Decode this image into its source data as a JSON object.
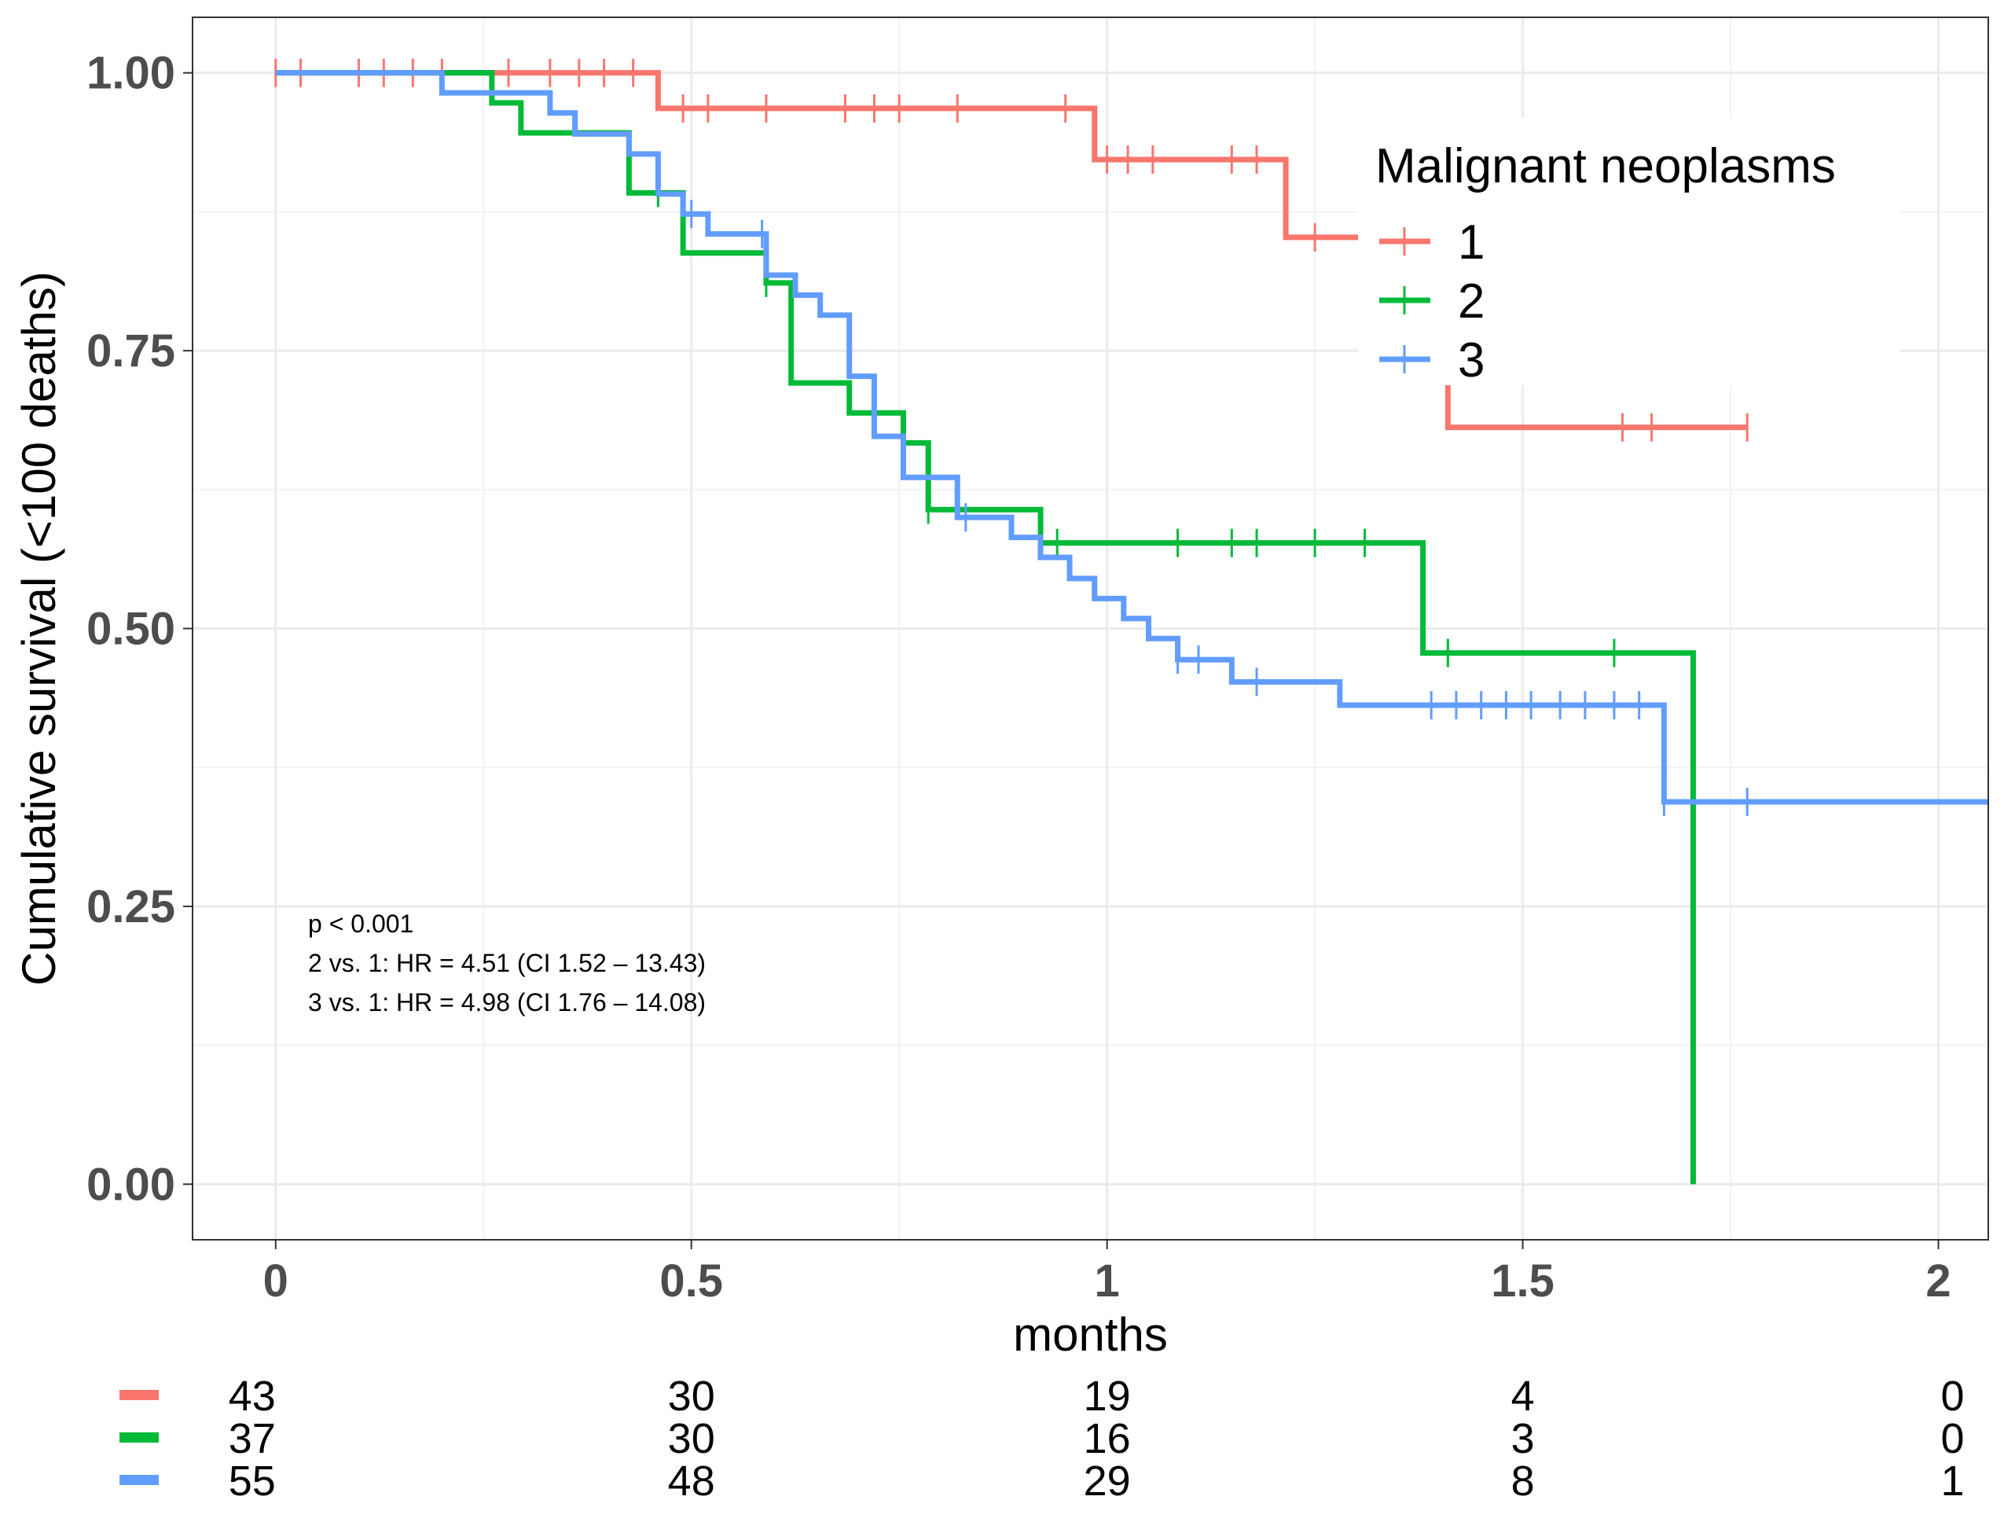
{
  "chart_data": {
    "type": "line",
    "subtype": "kaplan-meier",
    "title": "",
    "xlabel": "months",
    "ylabel": "Cumulative survival (<100 deaths)",
    "xlim": [
      -0.1,
      2.06
    ],
    "ylim": [
      -0.05,
      1.05
    ],
    "x_ticks": [
      0,
      0.5,
      1,
      1.5,
      2
    ],
    "x_tick_labels": [
      "0",
      "0.5",
      "1",
      "1.5",
      "2"
    ],
    "y_ticks": [
      0,
      0.25,
      0.5,
      0.75,
      1.0
    ],
    "y_tick_labels": [
      "0.00",
      "0.25",
      "0.50",
      "0.75",
      "1.00"
    ],
    "grid": true,
    "legend": {
      "title": "Malignant neoplasms",
      "placement": "top-right"
    },
    "series": [
      {
        "name": "1",
        "color": "#F8766D",
        "steps": [
          [
            0,
            1.0
          ],
          [
            0.46,
            0.968
          ],
          [
            0.985,
            0.922
          ],
          [
            1.215,
            0.852
          ],
          [
            1.41,
            0.681
          ],
          [
            1.77,
            0.681
          ]
        ],
        "censor_x": [
          0,
          0.03,
          0.1,
          0.13,
          0.165,
          0.2,
          0.28,
          0.33,
          0.365,
          0.395,
          0.43,
          0.49,
          0.52,
          0.59,
          0.685,
          0.72,
          0.75,
          0.82,
          0.95,
          1.0,
          1.025,
          1.055,
          1.15,
          1.18,
          1.25,
          1.62,
          1.655,
          1.77
        ]
      },
      {
        "name": "2",
        "color": "#00BA38",
        "steps": [
          [
            0,
            1.0
          ],
          [
            0.26,
            0.973
          ],
          [
            0.295,
            0.946
          ],
          [
            0.425,
            0.892
          ],
          [
            0.49,
            0.838
          ],
          [
            0.59,
            0.811
          ],
          [
            0.62,
            0.721
          ],
          [
            0.69,
            0.694
          ],
          [
            0.755,
            0.667
          ],
          [
            0.785,
            0.607
          ],
          [
            0.92,
            0.577
          ],
          [
            1.38,
            0.478
          ],
          [
            1.705,
            0.478
          ],
          [
            1.705,
            0.0
          ]
        ],
        "censor_x": [
          0.46,
          0.59,
          0.785,
          0.94,
          1.085,
          1.15,
          1.18,
          1.25,
          1.31,
          1.41,
          1.61
        ]
      },
      {
        "name": "3",
        "color": "#619CFF",
        "steps": [
          [
            0,
            1.0
          ],
          [
            0.2,
            0.982
          ],
          [
            0.33,
            0.964
          ],
          [
            0.36,
            0.945
          ],
          [
            0.425,
            0.927
          ],
          [
            0.46,
            0.891
          ],
          [
            0.49,
            0.873
          ],
          [
            0.52,
            0.855
          ],
          [
            0.59,
            0.818
          ],
          [
            0.625,
            0.8
          ],
          [
            0.655,
            0.782
          ],
          [
            0.69,
            0.727
          ],
          [
            0.72,
            0.673
          ],
          [
            0.755,
            0.636
          ],
          [
            0.82,
            0.6
          ],
          [
            0.885,
            0.582
          ],
          [
            0.92,
            0.564
          ],
          [
            0.955,
            0.545
          ],
          [
            0.985,
            0.527
          ],
          [
            1.02,
            0.509
          ],
          [
            1.05,
            0.491
          ],
          [
            1.085,
            0.472
          ],
          [
            1.15,
            0.452
          ],
          [
            1.28,
            0.431
          ],
          [
            1.67,
            0.344
          ],
          [
            2.06,
            0.344
          ]
        ],
        "censor_x": [
          0.5,
          0.585,
          0.83,
          1.085,
          1.11,
          1.18,
          1.39,
          1.42,
          1.45,
          1.48,
          1.51,
          1.545,
          1.575,
          1.61,
          1.64,
          1.67,
          1.77
        ]
      }
    ],
    "annotations": [
      "p < 0.001",
      "2 vs. 1: HR = 4.51 (CI 1.52 – 13.43)",
      "3 vs. 1: HR = 4.98 (CI 1.76 – 14.08)"
    ],
    "risk_table": {
      "times": [
        0,
        0.5,
        1,
        1.5,
        2
      ],
      "rows": [
        {
          "name": "1",
          "color": "#F8766D",
          "values": [
            "43",
            "30",
            "19",
            "4",
            "0"
          ]
        },
        {
          "name": "2",
          "color": "#00BA38",
          "values": [
            "37",
            "30",
            "16",
            "3",
            "0"
          ]
        },
        {
          "name": "3",
          "color": "#619CFF",
          "values": [
            "55",
            "48",
            "29",
            "8",
            "1"
          ]
        }
      ]
    }
  }
}
